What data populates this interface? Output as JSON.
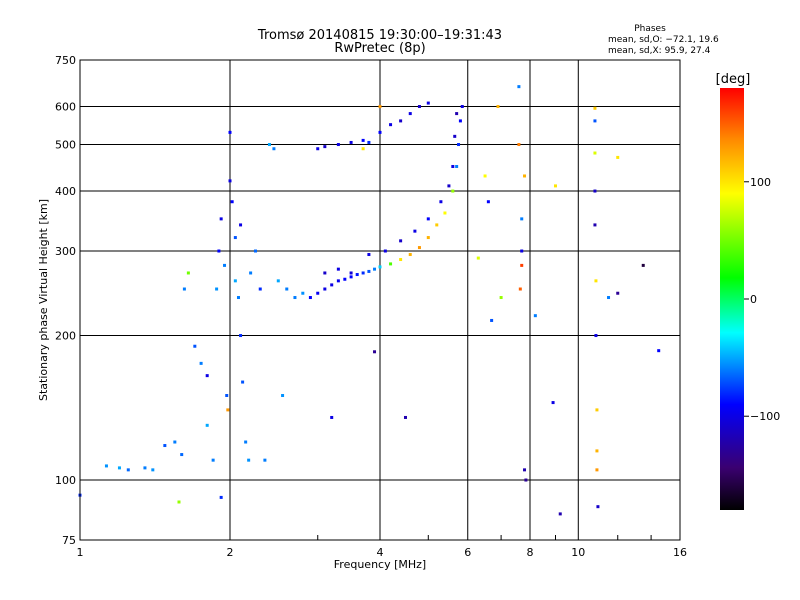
{
  "chart_data": {
    "type": "scatter",
    "title": "Tromsø 20140815 19:30:00–19:31:43",
    "subtitle": "RwPretec (8p)",
    "xlabel": "Frequency [MHz]",
    "ylabel": "Stationary phase Virtual Height [km]",
    "x_scale": "log2",
    "y_scale": "log",
    "xlim": [
      1,
      16
    ],
    "ylim": [
      75,
      750
    ],
    "x_ticks": [
      1,
      2,
      4,
      6,
      8,
      10,
      16
    ],
    "x_tick_labels": [
      "1",
      "2",
      "4",
      "6",
      "8",
      "10",
      "16"
    ],
    "y_ticks": [
      75,
      100,
      200,
      300,
      400,
      500,
      600,
      750
    ],
    "y_tick_labels": [
      "75",
      "100",
      "200",
      "300",
      "400",
      "500",
      "600",
      "750"
    ],
    "grid": true,
    "stats": {
      "title": "Phases",
      "line1": "mean, sd,O: −72.1, 19.6",
      "line2": "mean, sd,X:  95.9, 27.4"
    },
    "colorbar": {
      "label": "[deg]",
      "range": [
        -180,
        180
      ],
      "ticks": [
        100,
        0,
        -100
      ],
      "tick_labels": [
        "100",
        "0",
        "−100"
      ]
    },
    "series": [
      {
        "columns": [
          "frequency_mhz",
          "virtual_height_km",
          "phase_deg"
        ],
        "points": [
          [
            1.0,
            93,
            -80
          ],
          [
            1.13,
            107,
            -55
          ],
          [
            1.2,
            106,
            -50
          ],
          [
            1.25,
            105,
            -65
          ],
          [
            1.35,
            106,
            -60
          ],
          [
            1.4,
            105,
            -55
          ],
          [
            1.48,
            118,
            -70
          ],
          [
            1.55,
            120,
            -60
          ],
          [
            1.6,
            113,
            -65
          ],
          [
            1.62,
            250,
            -60
          ],
          [
            1.65,
            270,
            50
          ],
          [
            1.7,
            190,
            -70
          ],
          [
            1.75,
            175,
            -60
          ],
          [
            1.8,
            165,
            -100
          ],
          [
            1.8,
            130,
            -50
          ],
          [
            1.85,
            110,
            -60
          ],
          [
            1.88,
            250,
            -55
          ],
          [
            1.9,
            300,
            -90
          ],
          [
            1.92,
            350,
            -100
          ],
          [
            1.95,
            280,
            -60
          ],
          [
            1.97,
            150,
            -70
          ],
          [
            1.98,
            140,
            130
          ],
          [
            2.0,
            420,
            -100
          ],
          [
            2.02,
            380,
            -90
          ],
          [
            2.05,
            320,
            -70
          ],
          [
            2.05,
            260,
            -50
          ],
          [
            2.08,
            240,
            -60
          ],
          [
            2.1,
            200,
            -80
          ],
          [
            2.12,
            160,
            -70
          ],
          [
            2.15,
            120,
            -60
          ],
          [
            2.18,
            110,
            -55
          ],
          [
            2.2,
            270,
            -60
          ],
          [
            2.25,
            300,
            -65
          ],
          [
            2.3,
            250,
            -80
          ],
          [
            2.35,
            110,
            -60
          ],
          [
            2.4,
            500,
            -50
          ],
          [
            2.45,
            490,
            -60
          ],
          [
            2.5,
            260,
            -50
          ],
          [
            2.55,
            150,
            -55
          ],
          [
            2.6,
            250,
            -60
          ],
          [
            2.7,
            240,
            -60
          ],
          [
            2.8,
            245,
            -55
          ],
          [
            1.58,
            90,
            60
          ],
          [
            1.92,
            92,
            -80
          ],
          [
            2.0,
            530,
            -90
          ],
          [
            2.1,
            340,
            -100
          ],
          [
            2.9,
            240,
            -90
          ],
          [
            3.0,
            245,
            -95
          ],
          [
            3.1,
            250,
            -100
          ],
          [
            3.2,
            255,
            -100
          ],
          [
            3.3,
            260,
            -95
          ],
          [
            3.4,
            262,
            -90
          ],
          [
            3.5,
            265,
            -90
          ],
          [
            3.6,
            268,
            -85
          ],
          [
            3.7,
            270,
            -80
          ],
          [
            3.8,
            272,
            -70
          ],
          [
            3.9,
            275,
            -60
          ],
          [
            4.0,
            278,
            -40
          ],
          [
            4.2,
            282,
            40
          ],
          [
            4.4,
            288,
            100
          ],
          [
            4.6,
            295,
            120
          ],
          [
            4.8,
            305,
            130
          ],
          [
            5.0,
            320,
            120
          ],
          [
            5.2,
            340,
            110
          ],
          [
            5.4,
            360,
            90
          ],
          [
            5.6,
            400,
            60
          ],
          [
            5.7,
            450,
            -60
          ],
          [
            5.75,
            500,
            -80
          ],
          [
            5.8,
            560,
            -90
          ],
          [
            5.85,
            600,
            -100
          ],
          [
            3.1,
            270,
            -110
          ],
          [
            3.3,
            275,
            -100
          ],
          [
            3.5,
            270,
            -105
          ],
          [
            3.8,
            295,
            -100
          ],
          [
            4.1,
            300,
            -100
          ],
          [
            4.4,
            315,
            -110
          ],
          [
            4.7,
            330,
            -100
          ],
          [
            5.0,
            350,
            -90
          ],
          [
            5.3,
            380,
            -100
          ],
          [
            5.5,
            410,
            -110
          ],
          [
            5.6,
            450,
            -100
          ],
          [
            5.65,
            520,
            -110
          ],
          [
            5.7,
            580,
            -120
          ],
          [
            3.0,
            490,
            -100
          ],
          [
            3.1,
            495,
            -110
          ],
          [
            3.3,
            500,
            -100
          ],
          [
            3.5,
            505,
            -100
          ],
          [
            3.7,
            510,
            -90
          ],
          [
            3.8,
            505,
            -80
          ],
          [
            4.0,
            530,
            -90
          ],
          [
            4.2,
            550,
            -100
          ],
          [
            4.4,
            560,
            -110
          ],
          [
            4.6,
            580,
            -100
          ],
          [
            4.8,
            600,
            -110
          ],
          [
            5.0,
            610,
            -100
          ],
          [
            3.7,
            490,
            100
          ],
          [
            4.0,
            600,
            130
          ],
          [
            3.2,
            135,
            -100
          ],
          [
            4.5,
            135,
            -120
          ],
          [
            3.9,
            185,
            -130
          ],
          [
            6.3,
            290,
            80
          ],
          [
            6.5,
            430,
            90
          ],
          [
            6.6,
            380,
            -90
          ],
          [
            6.7,
            215,
            -70
          ],
          [
            6.9,
            600,
            120
          ],
          [
            7.0,
            240,
            60
          ],
          [
            7.6,
            660,
            -60
          ],
          [
            7.6,
            500,
            140
          ],
          [
            7.65,
            250,
            150
          ],
          [
            7.7,
            300,
            -100
          ],
          [
            7.7,
            350,
            -60
          ],
          [
            7.7,
            280,
            160
          ],
          [
            7.8,
            430,
            120
          ],
          [
            7.8,
            105,
            -120
          ],
          [
            7.85,
            100,
            -130
          ],
          [
            8.2,
            220,
            -60
          ],
          [
            8.9,
            145,
            -100
          ],
          [
            9.2,
            85,
            -120
          ],
          [
            10.8,
            595,
            110
          ],
          [
            10.8,
            560,
            -70
          ],
          [
            10.8,
            480,
            80
          ],
          [
            10.8,
            400,
            -110
          ],
          [
            10.8,
            340,
            -120
          ],
          [
            10.85,
            260,
            100
          ],
          [
            10.85,
            200,
            -100
          ],
          [
            10.9,
            140,
            110
          ],
          [
            10.9,
            115,
            120
          ],
          [
            10.9,
            105,
            130
          ],
          [
            10.95,
            88,
            -110
          ],
          [
            11.5,
            240,
            -60
          ],
          [
            12.0,
            470,
            100
          ],
          [
            12.0,
            245,
            -130
          ],
          [
            13.5,
            280,
            -160
          ],
          [
            14.5,
            186,
            -90
          ],
          [
            9.0,
            410,
            100
          ]
        ]
      }
    ]
  }
}
